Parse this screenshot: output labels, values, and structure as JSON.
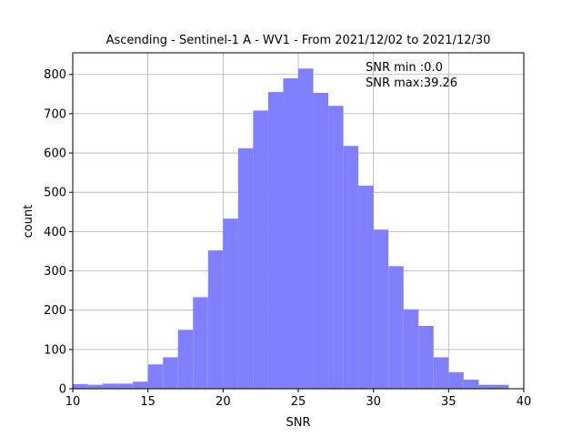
{
  "chart_data": {
    "type": "bar",
    "title": "Ascending - Sentinel-1 A - WV1 - From 2021/12/02 to 2021/12/30",
    "xlabel": "SNR",
    "ylabel": "count",
    "xlim": [
      10,
      40
    ],
    "ylim": [
      0,
      855
    ],
    "x_ticks": [
      10,
      15,
      20,
      25,
      30,
      35,
      40
    ],
    "y_ticks": [
      0,
      100,
      200,
      300,
      400,
      500,
      600,
      700,
      800
    ],
    "grid": true,
    "bar_color": "#8080ff",
    "annotations": [
      "SNR min :0.0",
      "SNR max:39.26"
    ],
    "bins": [
      {
        "x0": 10.0,
        "x1": 11.0,
        "count": 12
      },
      {
        "x0": 11.0,
        "x1": 12.0,
        "count": 10
      },
      {
        "x0": 12.0,
        "x1": 13.0,
        "count": 13
      },
      {
        "x0": 13.0,
        "x1": 14.0,
        "count": 13
      },
      {
        "x0": 14.0,
        "x1": 15.0,
        "count": 18
      },
      {
        "x0": 15.0,
        "x1": 16.0,
        "count": 62
      },
      {
        "x0": 16.0,
        "x1": 17.0,
        "count": 80
      },
      {
        "x0": 17.0,
        "x1": 18.0,
        "count": 150
      },
      {
        "x0": 18.0,
        "x1": 19.0,
        "count": 233
      },
      {
        "x0": 19.0,
        "x1": 20.0,
        "count": 352
      },
      {
        "x0": 20.0,
        "x1": 21.0,
        "count": 433
      },
      {
        "x0": 21.0,
        "x1": 22.0,
        "count": 612
      },
      {
        "x0": 22.0,
        "x1": 23.0,
        "count": 708
      },
      {
        "x0": 23.0,
        "x1": 24.0,
        "count": 755
      },
      {
        "x0": 24.0,
        "x1": 25.0,
        "count": 790
      },
      {
        "x0": 25.0,
        "x1": 26.0,
        "count": 815
      },
      {
        "x0": 26.0,
        "x1": 27.0,
        "count": 753
      },
      {
        "x0": 27.0,
        "x1": 28.0,
        "count": 720
      },
      {
        "x0": 28.0,
        "x1": 29.0,
        "count": 618
      },
      {
        "x0": 29.0,
        "x1": 30.0,
        "count": 517
      },
      {
        "x0": 30.0,
        "x1": 31.0,
        "count": 405
      },
      {
        "x0": 31.0,
        "x1": 32.0,
        "count": 312
      },
      {
        "x0": 32.0,
        "x1": 33.0,
        "count": 202
      },
      {
        "x0": 33.0,
        "x1": 34.0,
        "count": 160
      },
      {
        "x0": 34.0,
        "x1": 35.0,
        "count": 80
      },
      {
        "x0": 35.0,
        "x1": 36.0,
        "count": 42
      },
      {
        "x0": 36.0,
        "x1": 37.0,
        "count": 23
      },
      {
        "x0": 37.0,
        "x1": 38.0,
        "count": 10
      },
      {
        "x0": 38.0,
        "x1": 39.0,
        "count": 10
      }
    ]
  }
}
